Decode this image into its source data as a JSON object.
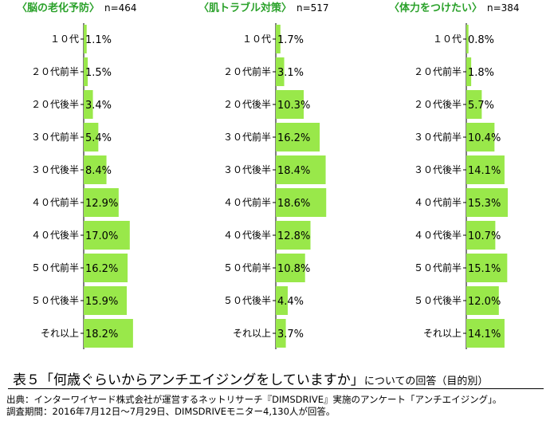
{
  "chart_data": [
    {
      "type": "bar",
      "title": "〈脳の老化予防〉",
      "n_label": "n=464",
      "categories": [
        "１０代",
        "２０代前半",
        "２０代後半",
        "３０代前半",
        "３０代後半",
        "４０代前半",
        "４０代後半",
        "５０代前半",
        "５０代後半",
        "それ以上"
      ],
      "values": [
        1.1,
        1.5,
        3.4,
        5.4,
        8.4,
        12.9,
        17.0,
        16.2,
        15.9,
        18.2
      ],
      "value_labels": [
        "1.1%",
        "1.5%",
        "3.4%",
        "5.4%",
        "8.4%",
        "12.9%",
        "17.0%",
        "16.2%",
        "15.9%",
        "18.2%"
      ]
    },
    {
      "type": "bar",
      "title": "〈肌トラブル対策〉",
      "n_label": "n=517",
      "categories": [
        "１０代",
        "２０代前半",
        "２０代後半",
        "３０代前半",
        "３０代後半",
        "４０代前半",
        "４０代後半",
        "５０代前半",
        "５０代後半",
        "それ以上"
      ],
      "values": [
        1.7,
        3.1,
        10.3,
        16.2,
        18.4,
        18.6,
        12.8,
        10.8,
        4.4,
        3.7
      ],
      "value_labels": [
        "1.7%",
        "3.1%",
        "10.3%",
        "16.2%",
        "18.4%",
        "18.6%",
        "12.8%",
        "10.8%",
        "4.4%",
        "3.7%"
      ]
    },
    {
      "type": "bar",
      "title": "〈体力をつけたい〉",
      "n_label": "n=384",
      "categories": [
        "１０代",
        "２０代前半",
        "２０代後半",
        "３０代前半",
        "３０代後半",
        "４０代前半",
        "４０代後半",
        "５０代前半",
        "５０代後半",
        "それ以上"
      ],
      "values": [
        0.8,
        1.8,
        5.7,
        10.4,
        14.1,
        15.3,
        10.7,
        15.1,
        12.0,
        14.1
      ],
      "value_labels": [
        "0.8%",
        "1.8%",
        "5.7%",
        "10.4%",
        "14.1%",
        "15.3%",
        "10.7%",
        "15.1%",
        "12.0%",
        "14.1%"
      ]
    }
  ],
  "colors": {
    "bar": "#99e84a",
    "title": "#2aa12a",
    "axis": "#000000"
  },
  "caption": {
    "main": "表５「何歳ぐらいからアンチエイジングをしていますか」",
    "sub": "についての回答（目的別）"
  },
  "source": {
    "line1": "出典：インターワイヤード株式会社が運営するネットリサーチ『DIMSDRIVE』実施のアンケート「アンチエイジング」。",
    "line2": "調査期間：2016年7月12日～7月29日、DIMSDRIVEモニター4,130人が回答。"
  }
}
